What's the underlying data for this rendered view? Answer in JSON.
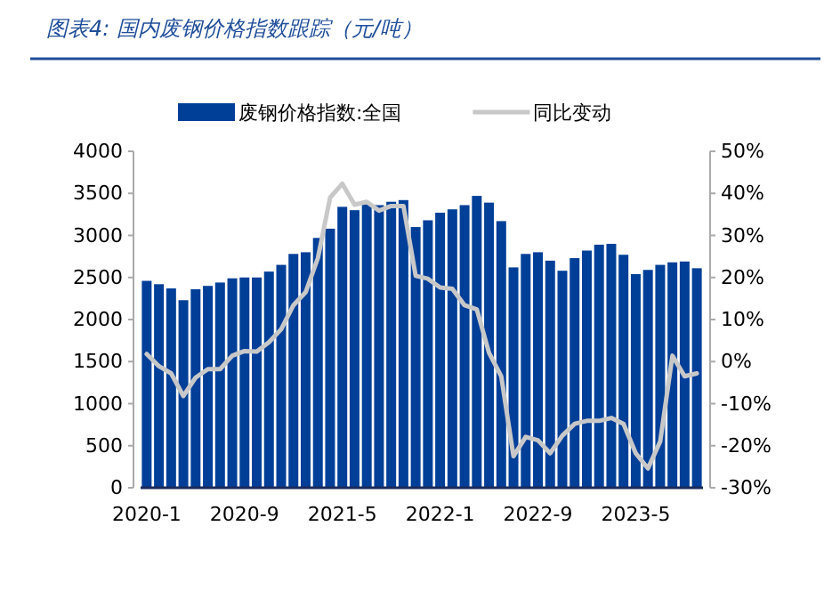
{
  "chart_data": {
    "type": "bar",
    "title": "图表4: 国内废钢价格指数跟踪（元/吨）",
    "categories": [
      "2020-1",
      null,
      null,
      null,
      null,
      null,
      null,
      null,
      "2020-9",
      null,
      null,
      null,
      null,
      null,
      null,
      null,
      "2021-5",
      null,
      null,
      null,
      null,
      null,
      null,
      null,
      "2022-1",
      null,
      null,
      null,
      null,
      null,
      null,
      null,
      "2022-9",
      null,
      null,
      null,
      null,
      null,
      null,
      null,
      "2023-5",
      null,
      null,
      null,
      null,
      null
    ],
    "series": [
      {
        "name": "废钢价格指数:全国",
        "color": "#003f98",
        "values": [
          2460,
          2420,
          2370,
          2230,
          2360,
          2400,
          2440,
          2490,
          2500,
          2500,
          2570,
          2650,
          2780,
          2800,
          2970,
          3080,
          3340,
          3300,
          3370,
          3360,
          3400,
          3420,
          3100,
          3180,
          3270,
          3310,
          3360,
          3470,
          3390,
          3170,
          2620,
          2780,
          2800,
          2700,
          2580,
          2730,
          2820,
          2890,
          2900,
          2770,
          2540,
          2590,
          2650,
          2680,
          2690,
          2610
        ]
      },
      {
        "name": "同比变动",
        "type": "line",
        "axis": "y2",
        "color": "#c8c8c8",
        "values": [
          1.8,
          -1.1,
          -2.8,
          -8.2,
          -3.8,
          -1.8,
          -1.8,
          1.4,
          2.5,
          2.4,
          4.6,
          7.7,
          13.4,
          16.5,
          24.6,
          39,
          42.3,
          37.3,
          38,
          35.9,
          37,
          37,
          20.4,
          19.7,
          17.6,
          17.3,
          13.4,
          12.4,
          2.1,
          -3.5,
          -22.5,
          -17.9,
          -18.7,
          -21.8,
          -17.6,
          -14.8,
          -14.1,
          -14.1,
          -13.4,
          -14.8,
          -21.8,
          -25.4,
          -19,
          1.4,
          -3.5,
          -2.8
        ]
      }
    ],
    "ylim": [
      0,
      4000
    ],
    "yticks": [
      0,
      500,
      1000,
      1500,
      2000,
      2500,
      3000,
      3500,
      4000
    ],
    "y2lim": [
      -30,
      50
    ],
    "y2ticks": [
      {
        "value": -30,
        "label": "-30%"
      },
      {
        "value": -20,
        "label": "-20%"
      },
      {
        "value": -10,
        "label": "-10%"
      },
      {
        "value": 0,
        "label": "0%"
      },
      {
        "value": 10,
        "label": "10%"
      },
      {
        "value": 20,
        "label": "20%"
      },
      {
        "value": 30,
        "label": "30%"
      },
      {
        "value": 40,
        "label": "40%"
      },
      {
        "value": 50,
        "label": "50%"
      }
    ],
    "legend": "top",
    "grid": false
  }
}
